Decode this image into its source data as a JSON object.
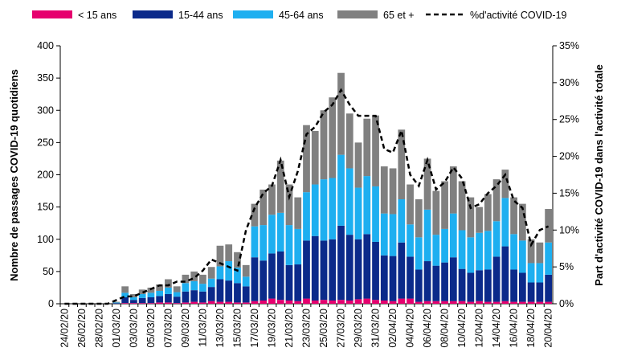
{
  "chart_data": {
    "type": "bar",
    "y_label": "Nombre de passages COVID-19 quotidiens",
    "y2_label": "Part d'activité COVID-19 dans l'activité totale",
    "stacked": true,
    "categories": [
      "24/02/20",
      null,
      "26/02/20",
      null,
      "28/02/20",
      null,
      "01/03/20",
      null,
      "03/03/20",
      null,
      "05/03/20",
      null,
      "07/03/20",
      null,
      "09/03/20",
      null,
      "11/03/20",
      null,
      "13/03/20",
      null,
      "15/03/20",
      null,
      "17/03/20",
      null,
      "19/03/20",
      null,
      "21/03/20",
      null,
      "23/03/20",
      null,
      "25/03/20",
      null,
      "27/03/20",
      null,
      "29/03/20",
      null,
      "31/03/20",
      null,
      "02/04/20",
      null,
      "04/04/20",
      null,
      "06/04/20",
      null,
      "08/04/20",
      null,
      "10/04/20",
      null,
      "12/04/20",
      null,
      "14/04/20",
      null,
      "16/04/20",
      null,
      "18/04/20",
      null,
      "20/04/20"
    ],
    "series": [
      {
        "name": "< 15 ans",
        "color": "#e6006e",
        "values": [
          0,
          0,
          0,
          0,
          0,
          0,
          0,
          1,
          1,
          1,
          1,
          2,
          2,
          1,
          2,
          3,
          2,
          4,
          3,
          3,
          2,
          2,
          4,
          5,
          8,
          6,
          5,
          4,
          8,
          5,
          6,
          5,
          6,
          5,
          7,
          8,
          6,
          5,
          4,
          8,
          8,
          3,
          4,
          4,
          4,
          4,
          4,
          3,
          4,
          3,
          3,
          4,
          3,
          3,
          3,
          3,
          3
        ]
      },
      {
        "name": "15-44 ans",
        "color": "#0b2a8a",
        "values": [
          0,
          0,
          0,
          0,
          0,
          0,
          1,
          9,
          5,
          8,
          9,
          10,
          13,
          10,
          17,
          18,
          17,
          22,
          35,
          33,
          30,
          25,
          68,
          62,
          70,
          75,
          55,
          57,
          90,
          100,
          92,
          95,
          115,
          102,
          93,
          100,
          90,
          70,
          70,
          87,
          65,
          50,
          62,
          55,
          60,
          68,
          50,
          45,
          48,
          50,
          70,
          85,
          50,
          45,
          30,
          30,
          42
        ]
      },
      {
        "name": "45-64 ans",
        "color": "#1eaff0",
        "values": [
          0,
          0,
          0,
          0,
          0,
          0,
          1,
          7,
          4,
          6,
          7,
          8,
          10,
          7,
          13,
          14,
          12,
          13,
          20,
          30,
          24,
          15,
          48,
          55,
          60,
          60,
          62,
          55,
          75,
          80,
          95,
          95,
          110,
          103,
          80,
          90,
          86,
          65,
          65,
          67,
          50,
          50,
          80,
          48,
          52,
          68,
          60,
          55,
          58,
          60,
          55,
          75,
          55,
          50,
          30,
          30,
          50
        ]
      },
      {
        "name": "65 et +",
        "color": "#808080",
        "values": [
          0,
          0,
          0,
          0,
          0,
          0,
          1,
          10,
          5,
          7,
          8,
          10,
          13,
          9,
          13,
          15,
          14,
          18,
          32,
          26,
          24,
          18,
          35,
          55,
          47,
          81,
          63,
          49,
          104,
          83,
          107,
          125,
          127,
          85,
          70,
          89,
          110,
          73,
          71,
          108,
          62,
          59,
          79,
          68,
          74,
          73,
          76,
          62,
          40,
          57,
          65,
          44,
          57,
          57,
          37,
          32,
          52
        ]
      },
      {
        "name": "%d'activité COVID-19",
        "type": "line",
        "axis": "y2",
        "color": "#000000",
        "dashed": true,
        "values": [
          0,
          0,
          0,
          0,
          0,
          0,
          0.5,
          1,
          1,
          1.5,
          2,
          2.5,
          2.5,
          3,
          3,
          3.5,
          4.5,
          6,
          5.5,
          5,
          4.5,
          10,
          13,
          15,
          16,
          19.5,
          14.5,
          18,
          23,
          24,
          26,
          27,
          29,
          27,
          25.5,
          25.5,
          25.5,
          21,
          20.5,
          23.5,
          17.5,
          16,
          19.5,
          15.5,
          16.5,
          18.5,
          17,
          13,
          13.5,
          15,
          16,
          17.5,
          14,
          13,
          8,
          10,
          10.5
        ]
      }
    ],
    "ylim": [
      0,
      400
    ],
    "yticks": [
      0,
      50,
      100,
      150,
      200,
      250,
      300,
      350,
      400
    ],
    "y2lim": [
      0,
      35
    ],
    "y2ticks": [
      {
        "value": 0,
        "label": "0%"
      },
      {
        "value": 5,
        "label": "5%"
      },
      {
        "value": 10,
        "label": "10%"
      },
      {
        "value": 15,
        "label": "15%"
      },
      {
        "value": 20,
        "label": "20%"
      },
      {
        "value": 25,
        "label": "25%"
      },
      {
        "value": 30,
        "label": "30%"
      },
      {
        "value": 35,
        "label": "35%"
      }
    ],
    "legend": "top"
  }
}
